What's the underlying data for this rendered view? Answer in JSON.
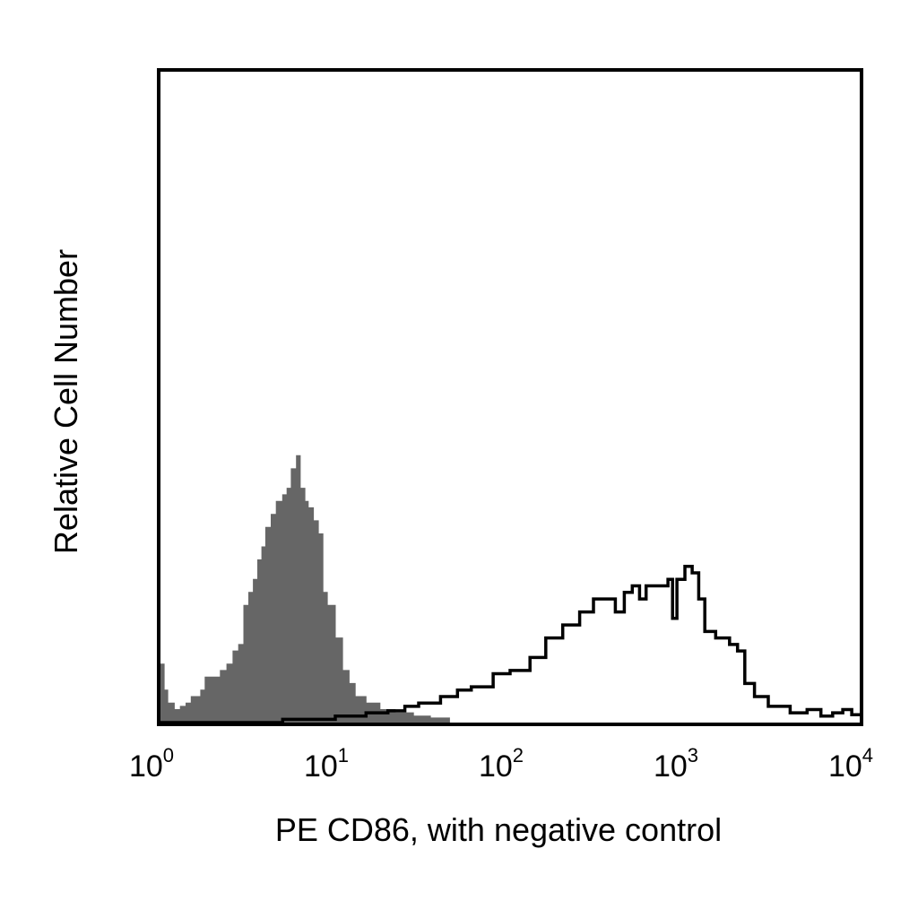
{
  "chart_data": {
    "type": "area",
    "title": "",
    "xlabel": "PE CD86, with negative control",
    "ylabel": "Relative Cell Number",
    "x_scale": "log",
    "xlim": [
      1,
      10000
    ],
    "ylim": [
      0,
      1
    ],
    "grid": false,
    "legend": "none",
    "x_ticks": [
      {
        "base": "10",
        "exp": "0",
        "value": 1
      },
      {
        "base": "10",
        "exp": "1",
        "value": 10
      },
      {
        "base": "10",
        "exp": "2",
        "value": 100
      },
      {
        "base": "10",
        "exp": "3",
        "value": 1000
      },
      {
        "base": "10",
        "exp": "4",
        "value": 10000
      }
    ],
    "series": [
      {
        "style": "filled",
        "color": "#666666",
        "points": [
          [
            1.0,
            0.09
          ],
          [
            1.05,
            0.05
          ],
          [
            1.1,
            0.03
          ],
          [
            1.2,
            0.02
          ],
          [
            1.3,
            0.025
          ],
          [
            1.4,
            0.03
          ],
          [
            1.5,
            0.04
          ],
          [
            1.6,
            0.04
          ],
          [
            1.7,
            0.05
          ],
          [
            1.8,
            0.07
          ],
          [
            2.0,
            0.07
          ],
          [
            2.2,
            0.08
          ],
          [
            2.4,
            0.09
          ],
          [
            2.6,
            0.11
          ],
          [
            2.8,
            0.12
          ],
          [
            3.0,
            0.18
          ],
          [
            3.2,
            0.2
          ],
          [
            3.4,
            0.22
          ],
          [
            3.6,
            0.25
          ],
          [
            3.8,
            0.27
          ],
          [
            4.0,
            0.3
          ],
          [
            4.3,
            0.32
          ],
          [
            4.6,
            0.34
          ],
          [
            5.0,
            0.35
          ],
          [
            5.3,
            0.36
          ],
          [
            5.6,
            0.39
          ],
          [
            6.0,
            0.41
          ],
          [
            6.3,
            0.36
          ],
          [
            6.7,
            0.34
          ],
          [
            7.0,
            0.33
          ],
          [
            7.5,
            0.31
          ],
          [
            8.0,
            0.29
          ],
          [
            8.5,
            0.2
          ],
          [
            9.0,
            0.18
          ],
          [
            10.0,
            0.13
          ],
          [
            11.0,
            0.08
          ],
          [
            12.0,
            0.06
          ],
          [
            13.0,
            0.04
          ],
          [
            15.0,
            0.03
          ],
          [
            18.0,
            0.02
          ],
          [
            22.0,
            0.015
          ],
          [
            28.0,
            0.01
          ],
          [
            35.0,
            0.007
          ],
          [
            45.0,
            0.003
          ]
        ]
      },
      {
        "style": "outline",
        "color": "#000000",
        "points": [
          [
            1.0,
            0.0
          ],
          [
            5.0,
            0.005
          ],
          [
            10.0,
            0.01
          ],
          [
            15.0,
            0.015
          ],
          [
            20.0,
            0.018
          ],
          [
            25.0,
            0.025
          ],
          [
            30.0,
            0.03
          ],
          [
            40.0,
            0.04
          ],
          [
            50.0,
            0.05
          ],
          [
            60.0,
            0.055
          ],
          [
            80.0,
            0.075
          ],
          [
            100.0,
            0.08
          ],
          [
            130.0,
            0.1
          ],
          [
            160.0,
            0.13
          ],
          [
            200.0,
            0.15
          ],
          [
            250.0,
            0.17
          ],
          [
            300.0,
            0.19
          ],
          [
            340.0,
            0.19
          ],
          [
            400.0,
            0.17
          ],
          [
            450.0,
            0.2
          ],
          [
            500.0,
            0.21
          ],
          [
            550.0,
            0.19
          ],
          [
            600.0,
            0.21
          ],
          [
            700.0,
            0.21
          ],
          [
            800.0,
            0.22
          ],
          [
            850.0,
            0.16
          ],
          [
            900.0,
            0.22
          ],
          [
            1000.0,
            0.24
          ],
          [
            1100.0,
            0.23
          ],
          [
            1200.0,
            0.19
          ],
          [
            1300.0,
            0.14
          ],
          [
            1500.0,
            0.13
          ],
          [
            1800.0,
            0.12
          ],
          [
            2000.0,
            0.11
          ],
          [
            2200.0,
            0.06
          ],
          [
            2500.0,
            0.04
          ],
          [
            3000.0,
            0.025
          ],
          [
            4000.0,
            0.015
          ],
          [
            5000.0,
            0.02
          ],
          [
            6000.0,
            0.01
          ],
          [
            7000.0,
            0.015
          ],
          [
            8000.0,
            0.02
          ],
          [
            9000.0,
            0.012
          ],
          [
            10000.0,
            0.01
          ]
        ]
      }
    ]
  }
}
